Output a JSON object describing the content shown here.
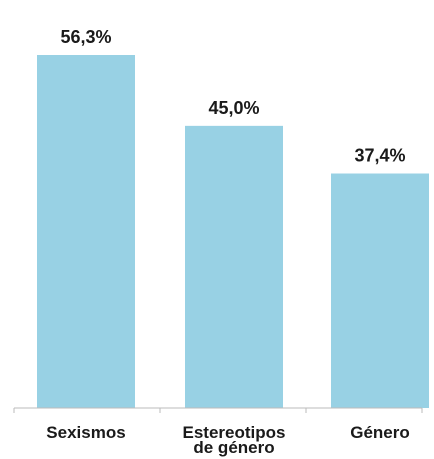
{
  "chart_data": {
    "type": "bar",
    "categories": [
      "Sexismos",
      "Estereotipos de género",
      "Género"
    ],
    "category_lines": [
      [
        "Sexismos"
      ],
      [
        "Estereotipos",
        "de género"
      ],
      [
        "Género"
      ]
    ],
    "values": [
      56.3,
      45.0,
      37.4
    ],
    "value_labels": [
      "56,3%",
      "45,0%",
      "37,4%"
    ],
    "ylim": [
      0,
      60
    ],
    "grid": false,
    "bar_color": "#98d1e4",
    "axis_color": "#bbbbbb",
    "text_color": "#1a1a1a"
  }
}
